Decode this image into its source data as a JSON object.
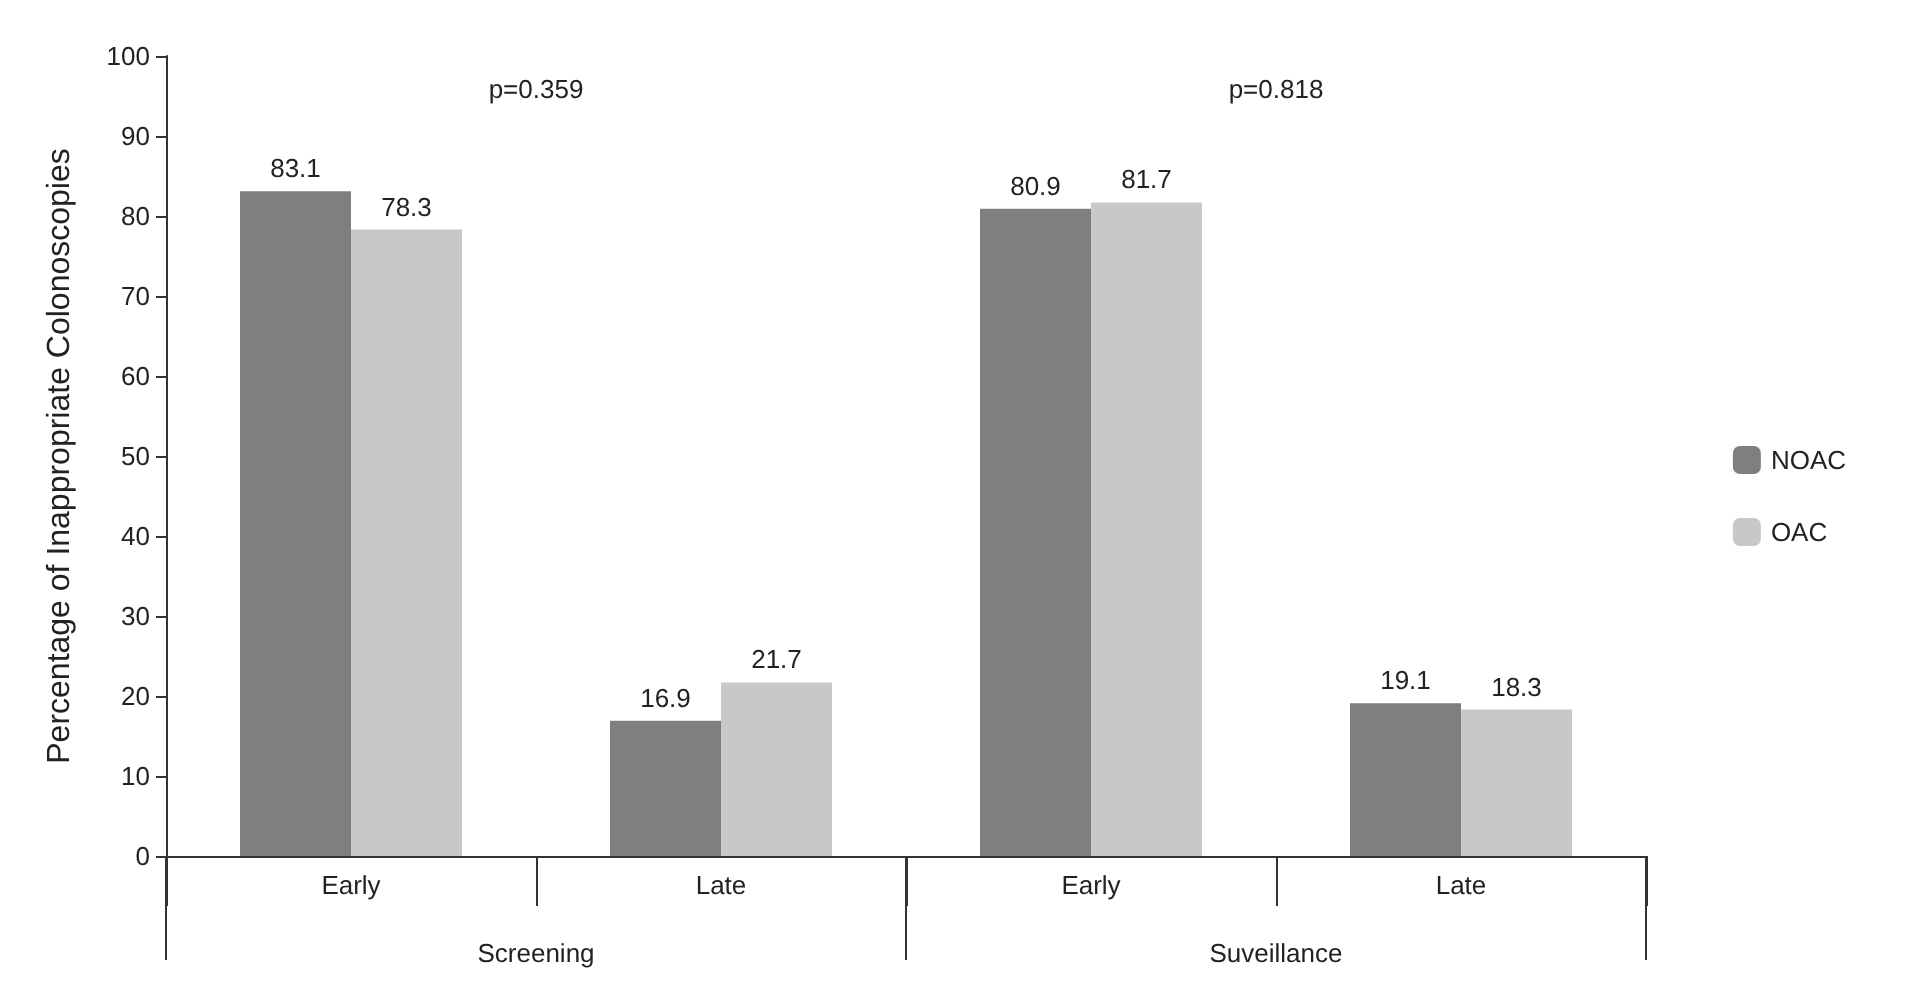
{
  "chart_data": {
    "type": "bar",
    "ylabel": "Percentage of Inappropriate Colonoscopies",
    "categories": [
      "Early",
      "Late",
      "Early",
      "Late"
    ],
    "series": [
      {
        "name": "NOAC",
        "color": "#7f7f7f",
        "values": [
          83.1,
          16.9,
          80.9,
          19.1
        ]
      },
      {
        "name": "OAC",
        "color": "#c8c8c8",
        "values": [
          78.3,
          21.7,
          81.7,
          18.3
        ]
      }
    ],
    "ylim": [
      0,
      100
    ],
    "yticks": [
      0,
      10,
      20,
      30,
      40,
      50,
      60,
      70,
      80,
      90,
      100
    ],
    "annotations": [
      "p=0.359",
      "p=0.818",
      "Screening",
      "Suveillance"
    ],
    "data_labels": true,
    "grid": false,
    "legend": "right"
  }
}
